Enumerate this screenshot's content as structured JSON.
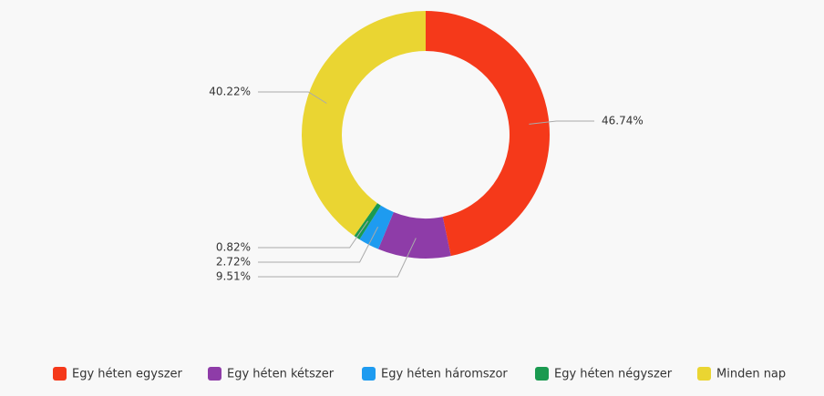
{
  "chart_data": {
    "type": "donut",
    "categories": [
      "Egy héten egyszer",
      "Egy héten kétszer",
      "Egy héten háromszor",
      "Egy héten négyszer",
      "Minden nap"
    ],
    "values": [
      46.74,
      9.51,
      2.72,
      0.82,
      40.22
    ],
    "value_labels": [
      "46.74%",
      "9.51%",
      "2.72%",
      "0.82%",
      "40.22%"
    ],
    "colors": [
      "#f5391a",
      "#8e3ca8",
      "#1e9bf0",
      "#1a9a50",
      "#ead532"
    ],
    "legend": "bottom"
  }
}
